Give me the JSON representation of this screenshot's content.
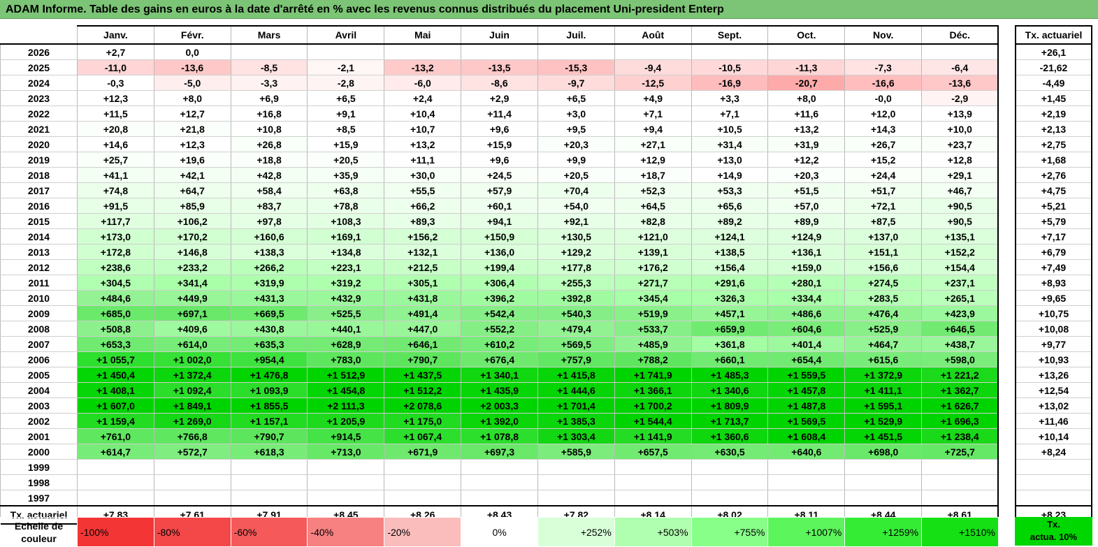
{
  "title": "ADAM Informe. Table des gains en euros à la date d'arrêté en % avec les revenus connus distribués du placement Uni-president Enterp",
  "months": [
    "Janv.",
    "Févr.",
    "Mars",
    "Avril",
    "Mai",
    "Juin",
    "Juil.",
    "Août",
    "Sept.",
    "Oct.",
    "Nov.",
    "Déc."
  ],
  "side_header": "Tx. actuariel",
  "rows": [
    {
      "year": "2026",
      "cells": [
        "+2,7",
        "0,0",
        "",
        "",
        "",
        "",
        "",
        "",
        "",
        "",
        "",
        ""
      ],
      "colors": [
        "#ffffff",
        "#ffffff",
        "",
        "",
        "",
        "",
        "",
        "",
        "",
        "",
        "",
        ""
      ],
      "tx": "+26,1"
    },
    {
      "year": "2025",
      "cells": [
        "-11,0",
        "-13,6",
        "-8,5",
        "-2,1",
        "-13,2",
        "-13,5",
        "-15,3",
        "-9,4",
        "-10,5",
        "-11,3",
        "-7,3",
        "-6,4"
      ],
      "colors": [
        "#ffd5d5",
        "#ffc8c8",
        "#ffe2e2",
        "#fff6f6",
        "#ffcaca",
        "#ffc8c8",
        "#ffc2c2",
        "#ffdcdc",
        "#ffd9d9",
        "#ffd6d6",
        "#ffe3e3",
        "#ffe6e6"
      ],
      "tx": "-21,62"
    },
    {
      "year": "2024",
      "cells": [
        "-0,3",
        "-5,0",
        "-3,3",
        "-2,8",
        "-6,0",
        "-8,6",
        "-9,7",
        "-12,5",
        "-16,9",
        "-20,7",
        "-16,6",
        "-13,6"
      ],
      "colors": [
        "#ffffff",
        "#ffeeee",
        "#fff2f2",
        "#fff4f4",
        "#ffebeb",
        "#ffe2e2",
        "#ffdcdc",
        "#ffd0d0",
        "#ffbcbc",
        "#ffaaaa",
        "#ffbdbd",
        "#ffc8c8"
      ],
      "tx": "-4,49"
    },
    {
      "year": "2023",
      "cells": [
        "+12,3",
        "+8,0",
        "+6,9",
        "+6,5",
        "+2,4",
        "+2,9",
        "+6,5",
        "+4,9",
        "+3,3",
        "+8,0",
        "-0,0",
        "-2,9"
      ],
      "colors": [
        "#ffffff",
        "#ffffff",
        "#ffffff",
        "#ffffff",
        "#ffffff",
        "#ffffff",
        "#ffffff",
        "#ffffff",
        "#ffffff",
        "#ffffff",
        "#ffffff",
        "#fff3f3"
      ],
      "tx": "+1,45"
    },
    {
      "year": "2022",
      "cells": [
        "+11,5",
        "+12,7",
        "+16,8",
        "+9,1",
        "+10,4",
        "+11,4",
        "+3,0",
        "+7,1",
        "+7,1",
        "+11,6",
        "+12,0",
        "+13,9"
      ],
      "colors": [
        "#ffffff",
        "#ffffff",
        "#ffffff",
        "#ffffff",
        "#ffffff",
        "#ffffff",
        "#ffffff",
        "#ffffff",
        "#ffffff",
        "#ffffff",
        "#ffffff",
        "#ffffff"
      ],
      "tx": "+2,19"
    },
    {
      "year": "2021",
      "cells": [
        "+20,8",
        "+21,8",
        "+10,8",
        "+8,5",
        "+10,7",
        "+9,6",
        "+9,5",
        "+9,4",
        "+10,5",
        "+13,2",
        "+14,3",
        "+10,0"
      ],
      "colors": [
        "#fbfffb",
        "#fbfffb",
        "#ffffff",
        "#ffffff",
        "#ffffff",
        "#ffffff",
        "#ffffff",
        "#ffffff",
        "#ffffff",
        "#ffffff",
        "#ffffff",
        "#ffffff"
      ],
      "tx": "+2,13"
    },
    {
      "year": "2020",
      "cells": [
        "+14,6",
        "+12,3",
        "+26,8",
        "+15,9",
        "+13,2",
        "+15,9",
        "+20,3",
        "+27,1",
        "+31,4",
        "+31,9",
        "+26,7",
        "+23,7"
      ],
      "colors": [
        "#ffffff",
        "#ffffff",
        "#f9fff9",
        "#ffffff",
        "#ffffff",
        "#ffffff",
        "#fbfffb",
        "#f9fff9",
        "#f8fff8",
        "#f8fff8",
        "#f9fff9",
        "#fafffa"
      ],
      "tx": "+2,75"
    },
    {
      "year": "2019",
      "cells": [
        "+25,7",
        "+19,6",
        "+18,8",
        "+20,5",
        "+11,1",
        "+9,6",
        "+9,9",
        "+12,9",
        "+13,0",
        "+12,2",
        "+15,2",
        "+12,8"
      ],
      "colors": [
        "#f9fff9",
        "#fbfffb",
        "#fbfffb",
        "#fbfffb",
        "#ffffff",
        "#ffffff",
        "#ffffff",
        "#ffffff",
        "#ffffff",
        "#ffffff",
        "#ffffff",
        "#ffffff"
      ],
      "tx": "+1,68"
    },
    {
      "year": "2018",
      "cells": [
        "+41,1",
        "+42,1",
        "+42,8",
        "+35,9",
        "+30,0",
        "+24,5",
        "+20,5",
        "+18,7",
        "+14,9",
        "+20,3",
        "+24,4",
        "+29,1"
      ],
      "colors": [
        "#f4fff4",
        "#f4fff4",
        "#f4fff4",
        "#f6fff6",
        "#f8fff8",
        "#fafffa",
        "#fbfffb",
        "#fbfffb",
        "#ffffff",
        "#fbfffb",
        "#fafffa",
        "#f8fff8"
      ],
      "tx": "+2,76"
    },
    {
      "year": "2017",
      "cells": [
        "+74,8",
        "+64,7",
        "+58,4",
        "+63,8",
        "+55,5",
        "+57,9",
        "+70,4",
        "+52,3",
        "+53,3",
        "+51,5",
        "+51,7",
        "+46,7"
      ],
      "colors": [
        "#ebffeb",
        "#eeffee",
        "#f0fff0",
        "#eeffee",
        "#f0fff0",
        "#f0fff0",
        "#ecffec",
        "#f1fff1",
        "#f1fff1",
        "#f1fff1",
        "#f1fff1",
        "#f3fff3"
      ],
      "tx": "+4,75"
    },
    {
      "year": "2016",
      "cells": [
        "+91,5",
        "+85,9",
        "+83,7",
        "+78,8",
        "+66,2",
        "+60,1",
        "+54,0",
        "+64,5",
        "+65,6",
        "+57,0",
        "+72,1",
        "+90,5"
      ],
      "colors": [
        "#e6ffe6",
        "#e8ffe8",
        "#e8ffe8",
        "#eaffea",
        "#edffed",
        "#efffef",
        "#f0fff0",
        "#eeffee",
        "#edffed",
        "#f0fff0",
        "#ebffeb",
        "#e6ffe6"
      ],
      "tx": "+5,21"
    },
    {
      "year": "2015",
      "cells": [
        "+117,7",
        "+106,2",
        "+97,8",
        "+108,3",
        "+89,3",
        "+94,1",
        "+92,1",
        "+82,8",
        "+89,2",
        "+89,9",
        "+87,5",
        "+90,5"
      ],
      "colors": [
        "#dfffdf",
        "#e2ffe2",
        "#e4ffe4",
        "#e2ffe2",
        "#e6ffe6",
        "#e5ffe5",
        "#e6ffe6",
        "#e8ffe8",
        "#e6ffe6",
        "#e6ffe6",
        "#e7ffe7",
        "#e6ffe6"
      ],
      "tx": "+5,79"
    },
    {
      "year": "2014",
      "cells": [
        "+173,0",
        "+170,2",
        "+160,6",
        "+169,1",
        "+156,2",
        "+150,9",
        "+130,5",
        "+121,0",
        "+124,1",
        "+124,9",
        "+137,0",
        "+135,1"
      ],
      "colors": [
        "#d0ffd0",
        "#d1ffd1",
        "#d4ffd4",
        "#d1ffd1",
        "#d5ffd5",
        "#d6ffd6",
        "#dcffdc",
        "#deffde",
        "#ddffdd",
        "#ddffdd",
        "#daffda",
        "#dbffdb"
      ],
      "tx": "+7,17"
    },
    {
      "year": "2013",
      "cells": [
        "+172,8",
        "+146,8",
        "+138,3",
        "+134,8",
        "+132,1",
        "+136,0",
        "+129,2",
        "+139,1",
        "+138,5",
        "+136,1",
        "+151,1",
        "+152,2"
      ],
      "colors": [
        "#d0ffd0",
        "#d7ffd7",
        "#daffda",
        "#dbffdb",
        "#dbffdb",
        "#daffda",
        "#dcffdc",
        "#d9ffd9",
        "#daffda",
        "#daffda",
        "#d6ffd6",
        "#d6ffd6"
      ],
      "tx": "+6,79"
    },
    {
      "year": "2012",
      "cells": [
        "+238,6",
        "+233,2",
        "+266,2",
        "+223,1",
        "+212,5",
        "+199,4",
        "+177,8",
        "+176,2",
        "+156,4",
        "+159,0",
        "+156,6",
        "+154,4"
      ],
      "colors": [
        "#c1ffc1",
        "#c2ffc2",
        "#baffba",
        "#c4ffc4",
        "#c7ffc7",
        "#caffca",
        "#cfffcf",
        "#d0ffd0",
        "#d5ffd5",
        "#d4ffd4",
        "#d5ffd5",
        "#d5ffd5"
      ],
      "tx": "+7,49"
    },
    {
      "year": "2011",
      "cells": [
        "+304,5",
        "+341,4",
        "+319,9",
        "+319,2",
        "+305,1",
        "+306,4",
        "+255,3",
        "+271,7",
        "+291,6",
        "+280,1",
        "+274,5",
        "+237,1"
      ],
      "colors": [
        "#b0ffb0",
        "#a8ffa8",
        "#adffad",
        "#adffad",
        "#b0ffb0",
        "#b0ffb0",
        "#bcffbc",
        "#b8ffb8",
        "#b3ffb3",
        "#b6ffb6",
        "#b7ffb7",
        "#c1ffc1"
      ],
      "tx": "+8,93"
    },
    {
      "year": "2010",
      "cells": [
        "+484,6",
        "+449,9",
        "+431,3",
        "+432,9",
        "+431,8",
        "+396,2",
        "+392,8",
        "+345,4",
        "+326,3",
        "+334,4",
        "+283,5",
        "+265,1"
      ],
      "colors": [
        "#94f294",
        "#98f598",
        "#9bf79b",
        "#9bf79b",
        "#9bf79b",
        "#a0fba0",
        "#a0fba0",
        "#a7ffa7",
        "#abffab",
        "#aaffaa",
        "#b5ffb5",
        "#baffba"
      ],
      "tx": "+9,65"
    },
    {
      "year": "2009",
      "cells": [
        "+685,0",
        "+697,1",
        "+669,5",
        "+525,5",
        "+491,4",
        "+542,4",
        "+540,3",
        "+519,9",
        "+457,1",
        "+486,6",
        "+476,4",
        "+423,9"
      ],
      "colors": [
        "#6be96b",
        "#69e869",
        "#6eea6e",
        "#8aef8a",
        "#90f290",
        "#86ee86",
        "#86ee86",
        "#8af08a",
        "#97f597",
        "#91f291",
        "#93f393",
        "#9cf89c"
      ],
      "tx": "+10,75"
    },
    {
      "year": "2008",
      "cells": [
        "+508,8",
        "+409,6",
        "+430,8",
        "+440,1",
        "+447,0",
        "+552,2",
        "+479,4",
        "+533,7",
        "+659,9",
        "+604,6",
        "+525,9",
        "+646,5"
      ],
      "colors": [
        "#8cf08c",
        "#9ff99f",
        "#9bf79b",
        "#99f699",
        "#98f598",
        "#85ee85",
        "#92f292",
        "#87ef87",
        "#70ea70",
        "#7aec7a",
        "#89ef89",
        "#72ea72"
      ],
      "tx": "+10,08"
    },
    {
      "year": "2007",
      "cells": [
        "+653,3",
        "+614,0",
        "+635,3",
        "+628,9",
        "+646,1",
        "+610,2",
        "+569,5",
        "+485,9",
        "+361,8",
        "+401,4",
        "+464,7",
        "+438,7"
      ],
      "colors": [
        "#71ea71",
        "#78ec78",
        "#74eb74",
        "#75eb75",
        "#72ea72",
        "#78ec78",
        "#80ed80",
        "#91f291",
        "#a4fea4",
        "#9ef99e",
        "#95f495",
        "#9af69a"
      ],
      "tx": "+9,77"
    },
    {
      "year": "2006",
      "cells": [
        "+1 055,7",
        "+1 002,0",
        "+954,4",
        "+783,0",
        "+790,7",
        "+676,4",
        "+757,9",
        "+788,2",
        "+660,1",
        "+654,4",
        "+615,6",
        "+598,0"
      ],
      "colors": [
        "#2ee02e",
        "#35e135",
        "#3ee23e",
        "#5ee65e",
        "#5de65d",
        "#6ee96e",
        "#61e761",
        "#5ee65e",
        "#71ea71",
        "#71ea71",
        "#78ec78",
        "#7aec7a"
      ],
      "tx": "+10,93"
    },
    {
      "year": "2005",
      "cells": [
        "+1 450,4",
        "+1 372,4",
        "+1 476,8",
        "+1 512,9",
        "+1 437,5",
        "+1 340,1",
        "+1 415,8",
        "+1 741,9",
        "+1 485,3",
        "+1 559,5",
        "+1 372,9",
        "+1 221,2"
      ],
      "colors": [
        "#04d504",
        "#0cd60c",
        "#03d503",
        "#00d400",
        "#05d505",
        "#10d710",
        "#07d507",
        "#00d400",
        "#02d402",
        "#00d400",
        "#0cd60c",
        "#1bd91b"
      ],
      "tx": "+13,26"
    },
    {
      "year": "2004",
      "cells": [
        "+1 408,1",
        "+1 092,4",
        "+1 093,9",
        "+1 454,8",
        "+1 512,2",
        "+1 435,9",
        "+1 444,6",
        "+1 366,1",
        "+1 340,6",
        "+1 457,8",
        "+1 411,1",
        "+1 362,7"
      ],
      "colors": [
        "#08d508",
        "#2ade2a",
        "#2ade2a",
        "#04d504",
        "#00d400",
        "#06d506",
        "#05d505",
        "#0dd60d",
        "#10d710",
        "#04d504",
        "#08d508",
        "#0dd60d"
      ],
      "tx": "+12,54"
    },
    {
      "year": "2003",
      "cells": [
        "+1 607,0",
        "+1 849,1",
        "+1 855,5",
        "+2 111,3",
        "+2 078,6",
        "+2 003,3",
        "+1 701,4",
        "+1 700,2",
        "+1 809,9",
        "+1 487,8",
        "+1 595,1",
        "+1 626,7"
      ],
      "colors": [
        "#00d400",
        "#00d400",
        "#00d400",
        "#00d400",
        "#00d400",
        "#00d400",
        "#00d400",
        "#00d400",
        "#00d400",
        "#02d402",
        "#00d400",
        "#00d400"
      ],
      "tx": "+13,02"
    },
    {
      "year": "2002",
      "cells": [
        "+1 159,4",
        "+1 269,0",
        "+1 157,1",
        "+1 205,9",
        "+1 175,0",
        "+1 392,0",
        "+1 385,3",
        "+1 544,4",
        "+1 713,7",
        "+1 569,5",
        "+1 529,9",
        "+1 696,3"
      ],
      "colors": [
        "#22dc22",
        "#16d816",
        "#22dc22",
        "#1dda1d",
        "#20db20",
        "#0ad60a",
        "#0bd60b",
        "#00d400",
        "#00d400",
        "#00d400",
        "#00d400",
        "#00d400"
      ],
      "tx": "+11,46"
    },
    {
      "year": "2001",
      "cells": [
        "+761,0",
        "+766,8",
        "+790,7",
        "+914,5",
        "+1 067,4",
        "+1 078,8",
        "+1 303,4",
        "+1 141,9",
        "+1 360,6",
        "+1 608,4",
        "+1 451,5",
        "+1 238,4"
      ],
      "colors": [
        "#60e760",
        "#60e760",
        "#5de65d",
        "#45e345",
        "#2ddf2d",
        "#2cdf2c",
        "#13d713",
        "#24dc24",
        "#0ed70e",
        "#00d400",
        "#04d504",
        "#19d919"
      ],
      "tx": "+10,14"
    },
    {
      "year": "2000",
      "cells": [
        "+614,7",
        "+572,7",
        "+618,3",
        "+713,0",
        "+671,9",
        "+697,3",
        "+585,9",
        "+657,5",
        "+630,5",
        "+640,6",
        "+698,0",
        "+725,7"
      ],
      "colors": [
        "#78ec78",
        "#7fed7f",
        "#77ec77",
        "#67e867",
        "#6ee96e",
        "#69e869",
        "#7ced7c",
        "#71ea71",
        "#74eb74",
        "#73eb73",
        "#69e869",
        "#65e865"
      ],
      "tx": "+8,24"
    },
    {
      "year": "1999",
      "cells": [
        "",
        "",
        "",
        "",
        "",
        "",
        "",
        "",
        "",
        "",
        "",
        ""
      ],
      "colors": [
        "",
        "",
        "",
        "",
        "",
        "",
        "",
        "",
        "",
        "",
        "",
        ""
      ],
      "tx": ""
    },
    {
      "year": "1998",
      "cells": [
        "",
        "",
        "",
        "",
        "",
        "",
        "",
        "",
        "",
        "",
        "",
        ""
      ],
      "colors": [
        "",
        "",
        "",
        "",
        "",
        "",
        "",
        "",
        "",
        "",
        "",
        ""
      ],
      "tx": ""
    },
    {
      "year": "1997",
      "cells": [
        "",
        "",
        "",
        "",
        "",
        "",
        "",
        "",
        "",
        "",
        "",
        ""
      ],
      "colors": [
        "",
        "",
        "",
        "",
        "",
        "",
        "",
        "",
        "",
        "",
        "",
        ""
      ],
      "tx": ""
    }
  ],
  "footer": {
    "label": "Tx. actuariel",
    "values": [
      "+7,83",
      "+7,61",
      "+7,91",
      "+8,45",
      "+8,26",
      "+8,43",
      "+7,82",
      "+8,14",
      "+8,02",
      "+8,11",
      "+8,44",
      "+8,61"
    ],
    "side_value": "+8,23"
  },
  "legend": {
    "label": "Echelle de couleur",
    "items": [
      {
        "text": "-100%",
        "color": "#f43535",
        "kind": "neg"
      },
      {
        "text": "-80%",
        "color": "#f44848",
        "kind": "neg"
      },
      {
        "text": "-60%",
        "color": "#f55959",
        "kind": "neg"
      },
      {
        "text": "-40%",
        "color": "#f78080",
        "kind": "neg"
      },
      {
        "text": "-20%",
        "color": "#fbbcbc",
        "kind": "neg"
      },
      {
        "text": "0%",
        "color": "#ffffff",
        "kind": "zero"
      },
      {
        "text": "+252%",
        "color": "#d9ffd9",
        "kind": "pos"
      },
      {
        "text": "+503%",
        "color": "#b0ffb0",
        "kind": "pos"
      },
      {
        "text": "+755%",
        "color": "#88ff88",
        "kind": "pos"
      },
      {
        "text": "+1007%",
        "color": "#5cf55c",
        "kind": "pos"
      },
      {
        "text": "+1259%",
        "color": "#35ec35",
        "kind": "pos"
      },
      {
        "text": "+1510%",
        "color": "#14e014",
        "kind": "pos"
      }
    ],
    "side_text_line1": "Tx.",
    "side_text_line2": "actua. 10%",
    "side_color": "#00d600"
  }
}
